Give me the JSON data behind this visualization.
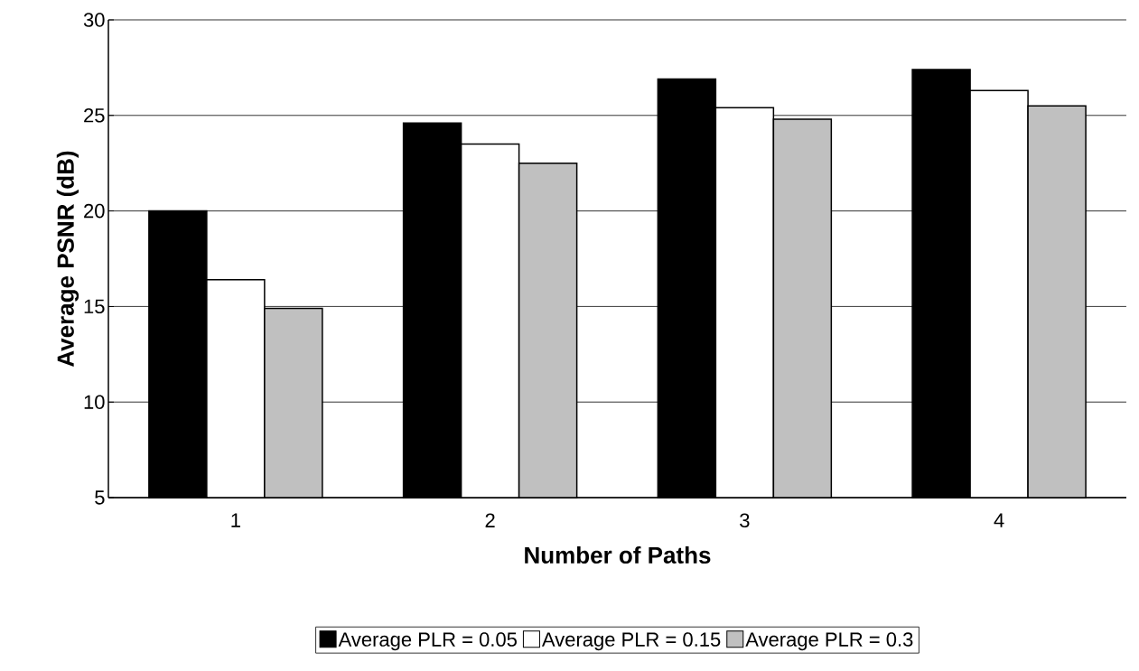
{
  "chart_data": {
    "type": "bar",
    "xlabel": "Number of Paths",
    "ylabel": "Average PSNR (dB)",
    "categories": [
      "1",
      "2",
      "3",
      "4"
    ],
    "series": [
      {
        "name": "Average PLR = 0.05",
        "color": "#000000",
        "values": [
          20.0,
          24.6,
          26.9,
          27.4
        ]
      },
      {
        "name": "Average PLR = 0.15",
        "color": "#ffffff",
        "values": [
          16.4,
          23.5,
          25.4,
          26.3
        ]
      },
      {
        "name": "Average PLR = 0.3",
        "color": "#c0c0c0",
        "values": [
          14.9,
          22.5,
          24.8,
          25.5
        ]
      }
    ],
    "ylim": [
      5,
      30
    ],
    "yticks": [
      5,
      10,
      15,
      20,
      25,
      30
    ],
    "grid": "y",
    "legend": "bottom"
  }
}
